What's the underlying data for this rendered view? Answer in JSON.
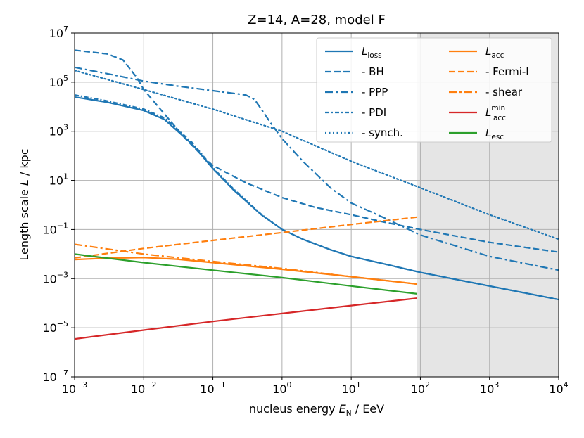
{
  "chart_data": {
    "type": "line",
    "title": "Z=14, A=28, model F",
    "xlabel": {
      "prefix": "nucleus energy ",
      "var": "E",
      "sub": "N",
      "unit": " / EeV"
    },
    "ylabel": {
      "prefix": "Length scale ",
      "var": "L",
      "unit": " / kpc"
    },
    "x_scale": "log",
    "y_scale": "log",
    "xlim": [
      0.001,
      10000
    ],
    "ylim": [
      1e-07,
      10000000.0
    ],
    "grid": true,
    "x_ticks": [
      {
        "value": 0.001,
        "base": "10",
        "exp": "−3"
      },
      {
        "value": 0.01,
        "base": "10",
        "exp": "−2"
      },
      {
        "value": 0.1,
        "base": "10",
        "exp": "−1"
      },
      {
        "value": 1,
        "base": "10",
        "exp": "0"
      },
      {
        "value": 10,
        "base": "10",
        "exp": "1"
      },
      {
        "value": 100,
        "base": "10",
        "exp": "2"
      },
      {
        "value": 1000,
        "base": "10",
        "exp": "3"
      },
      {
        "value": 10000,
        "base": "10",
        "exp": "4"
      }
    ],
    "y_ticks": [
      {
        "value": 1e-07,
        "base": "10",
        "exp": "−7"
      },
      {
        "value": 1e-05,
        "base": "10",
        "exp": "−5"
      },
      {
        "value": 0.001,
        "base": "10",
        "exp": "−3"
      },
      {
        "value": 0.1,
        "base": "10",
        "exp": "−1"
      },
      {
        "value": 10,
        "base": "10",
        "exp": "1"
      },
      {
        "value": 1000,
        "base": "10",
        "exp": "3"
      },
      {
        "value": 100000,
        "base": "10",
        "exp": "5"
      },
      {
        "value": 10000000,
        "base": "10",
        "exp": "7"
      }
    ],
    "shaded_region": {
      "x_from": 90,
      "x_to": 10000,
      "color": "#e5e5e5"
    },
    "series": [
      {
        "name": "L_loss",
        "legend_var": "L",
        "legend_sub": "loss",
        "legend_sup": "",
        "legend_label": "",
        "color": "#1f77b4",
        "style": "solid",
        "x": [
          0.001,
          0.003,
          0.01,
          0.02,
          0.05,
          0.1,
          0.2,
          0.5,
          1,
          2,
          5,
          10,
          30,
          100,
          1000,
          10000
        ],
        "y": [
          25000,
          15000,
          7000,
          3000,
          300,
          30,
          4,
          0.4,
          0.1,
          0.04,
          0.015,
          0.008,
          0.004,
          0.0018,
          0.0005,
          0.00014
        ]
      },
      {
        "name": "BH",
        "legend_var": "",
        "legend_sub": "",
        "legend_sup": "",
        "legend_label": "  - BH",
        "color": "#1f77b4",
        "style": "dashed",
        "x": [
          0.001,
          0.003,
          0.005,
          0.008,
          0.01,
          0.02,
          0.04,
          0.08,
          0.1,
          0.3,
          1,
          3,
          10,
          30,
          100,
          1000,
          10000
        ],
        "y": [
          2000000,
          1400000,
          800000,
          150000,
          50000,
          5000,
          500,
          70,
          40,
          8,
          2,
          0.8,
          0.4,
          0.2,
          0.1,
          0.03,
          0.012
        ]
      },
      {
        "name": "PPP",
        "legend_var": "",
        "legend_sub": "",
        "legend_sup": "",
        "legend_label": "  - PPP",
        "color": "#1f77b4",
        "style": "dashdot",
        "x": [
          0.001,
          0.003,
          0.01,
          0.03,
          0.1,
          0.3,
          0.4,
          0.5,
          0.7,
          1,
          2,
          5,
          10,
          30,
          100,
          1000,
          10000
        ],
        "y": [
          400000,
          220000,
          110000,
          70000,
          45000,
          30000,
          20000,
          8000,
          2000,
          500,
          60,
          5,
          1.2,
          0.3,
          0.06,
          0.008,
          0.0022
        ]
      },
      {
        "name": "PDI",
        "legend_var": "",
        "legend_sub": "",
        "legend_sup": "",
        "legend_label": "  - PDI",
        "color": "#1f77b4",
        "style": "dashdot-short",
        "x": [
          0.001,
          0.003,
          0.01,
          0.02,
          0.05,
          0.1,
          0.2,
          0.5,
          1,
          2,
          5,
          10,
          30,
          100,
          1000,
          10000
        ],
        "y": [
          30000,
          17000,
          8000,
          3500,
          350,
          33,
          4.4,
          0.42,
          0.1,
          0.04,
          0.015,
          0.008,
          0.004,
          0.0018,
          0.0005,
          0.00014
        ]
      },
      {
        "name": "synch",
        "legend_var": "",
        "legend_sub": "",
        "legend_sup": "",
        "legend_label": "  - synch.",
        "color": "#1f77b4",
        "style": "dotted",
        "x": [
          0.001,
          0.01,
          0.1,
          1,
          10,
          100,
          1000,
          10000
        ],
        "y": [
          300000,
          50000,
          8000,
          1000,
          60,
          5,
          0.4,
          0.04
        ]
      },
      {
        "name": "L_acc",
        "legend_var": "L",
        "legend_sub": "acc",
        "legend_sup": "",
        "legend_label": "",
        "color": "#ff7f0e",
        "style": "solid",
        "x": [
          0.001,
          0.003,
          0.01,
          0.03,
          0.1,
          1,
          10,
          90
        ],
        "y": [
          0.006,
          0.0068,
          0.0072,
          0.0062,
          0.0045,
          0.0024,
          0.0012,
          0.0006
        ]
      },
      {
        "name": "Fermi-I",
        "legend_var": "",
        "legend_sub": "",
        "legend_sup": "",
        "legend_label": "  - Fermi-I",
        "color": "#ff7f0e",
        "style": "dashed",
        "x": [
          0.001,
          0.01,
          0.1,
          1,
          10,
          90
        ],
        "y": [
          0.007,
          0.017,
          0.036,
          0.075,
          0.16,
          0.32
        ]
      },
      {
        "name": "shear",
        "legend_var": "",
        "legend_sub": "",
        "legend_sup": "",
        "legend_label": "  - shear",
        "color": "#ff7f0e",
        "style": "dashdot",
        "x": [
          0.001,
          0.01,
          0.1,
          1,
          10,
          90
        ],
        "y": [
          0.025,
          0.01,
          0.005,
          0.0026,
          0.0012,
          0.0006
        ]
      },
      {
        "name": "L_acc_min",
        "legend_var": "L",
        "legend_sub": "acc",
        "legend_sup": "min",
        "legend_label": "",
        "color": "#d62728",
        "style": "solid",
        "x": [
          0.001,
          0.01,
          0.1,
          1,
          10,
          90
        ],
        "y": [
          3.5e-06,
          8e-06,
          1.8e-05,
          3.8e-05,
          8e-05,
          0.00016
        ]
      },
      {
        "name": "L_esc",
        "legend_var": "L",
        "legend_sub": "esc",
        "legend_sup": "",
        "legend_label": "",
        "color": "#2ca02c",
        "style": "solid",
        "x": [
          0.001,
          0.01,
          0.1,
          1,
          10,
          90
        ],
        "y": [
          0.01,
          0.0045,
          0.0022,
          0.0011,
          0.0005,
          0.00024
        ]
      }
    ],
    "legend": {
      "placement": "top-right",
      "columns": [
        [
          "L_loss",
          "BH",
          "PPP",
          "PDI",
          "synch"
        ],
        [
          "L_acc",
          "Fermi-I",
          "shear",
          "L_acc_min",
          "L_esc"
        ]
      ]
    }
  }
}
